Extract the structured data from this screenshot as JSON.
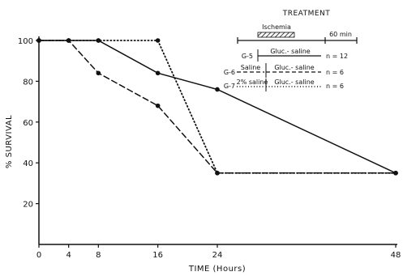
{
  "chart_data": {
    "type": "line",
    "title": "",
    "xlabel": "TIME (Hours)",
    "ylabel": "% SURVIVAL",
    "xlim": [
      0,
      48
    ],
    "ylim": [
      0,
      100
    ],
    "x_ticks": [
      0,
      4,
      8,
      16,
      24,
      48
    ],
    "y_ticks": [
      20,
      40,
      60,
      80,
      100
    ],
    "grid": false,
    "legend_position": "top-right",
    "series": [
      {
        "name": "G-5",
        "style": "solid",
        "x": [
          0,
          4,
          8,
          16,
          24,
          48
        ],
        "values": [
          100,
          100,
          100,
          84,
          76,
          35
        ]
      },
      {
        "name": "G-6",
        "style": "dashed",
        "x": [
          0,
          4,
          8,
          16,
          24,
          48
        ],
        "values": [
          100,
          100,
          84,
          68,
          35,
          35
        ]
      },
      {
        "name": "G-7",
        "style": "dotted",
        "x": [
          0,
          4,
          8,
          16,
          24,
          48
        ],
        "values": [
          100,
          100,
          100,
          100,
          35,
          35
        ]
      }
    ],
    "treatment_legend": {
      "title": "TREATMENT",
      "ischemia_label": "Ischemia",
      "duration_label": "60 min",
      "rows": [
        {
          "group": "G-5",
          "pre_label": "",
          "treatment": "Gluc.- saline",
          "n": "n = 12",
          "style": "solid"
        },
        {
          "group": "G-6",
          "pre_label": "Saline",
          "treatment": "Gluc.- saline",
          "n": "n = 6",
          "style": "dashed"
        },
        {
          "group": "G-7",
          "pre_label": "2% saline",
          "treatment": "Gluc.- saline",
          "n": "n = 6",
          "style": "dotted"
        }
      ]
    }
  }
}
